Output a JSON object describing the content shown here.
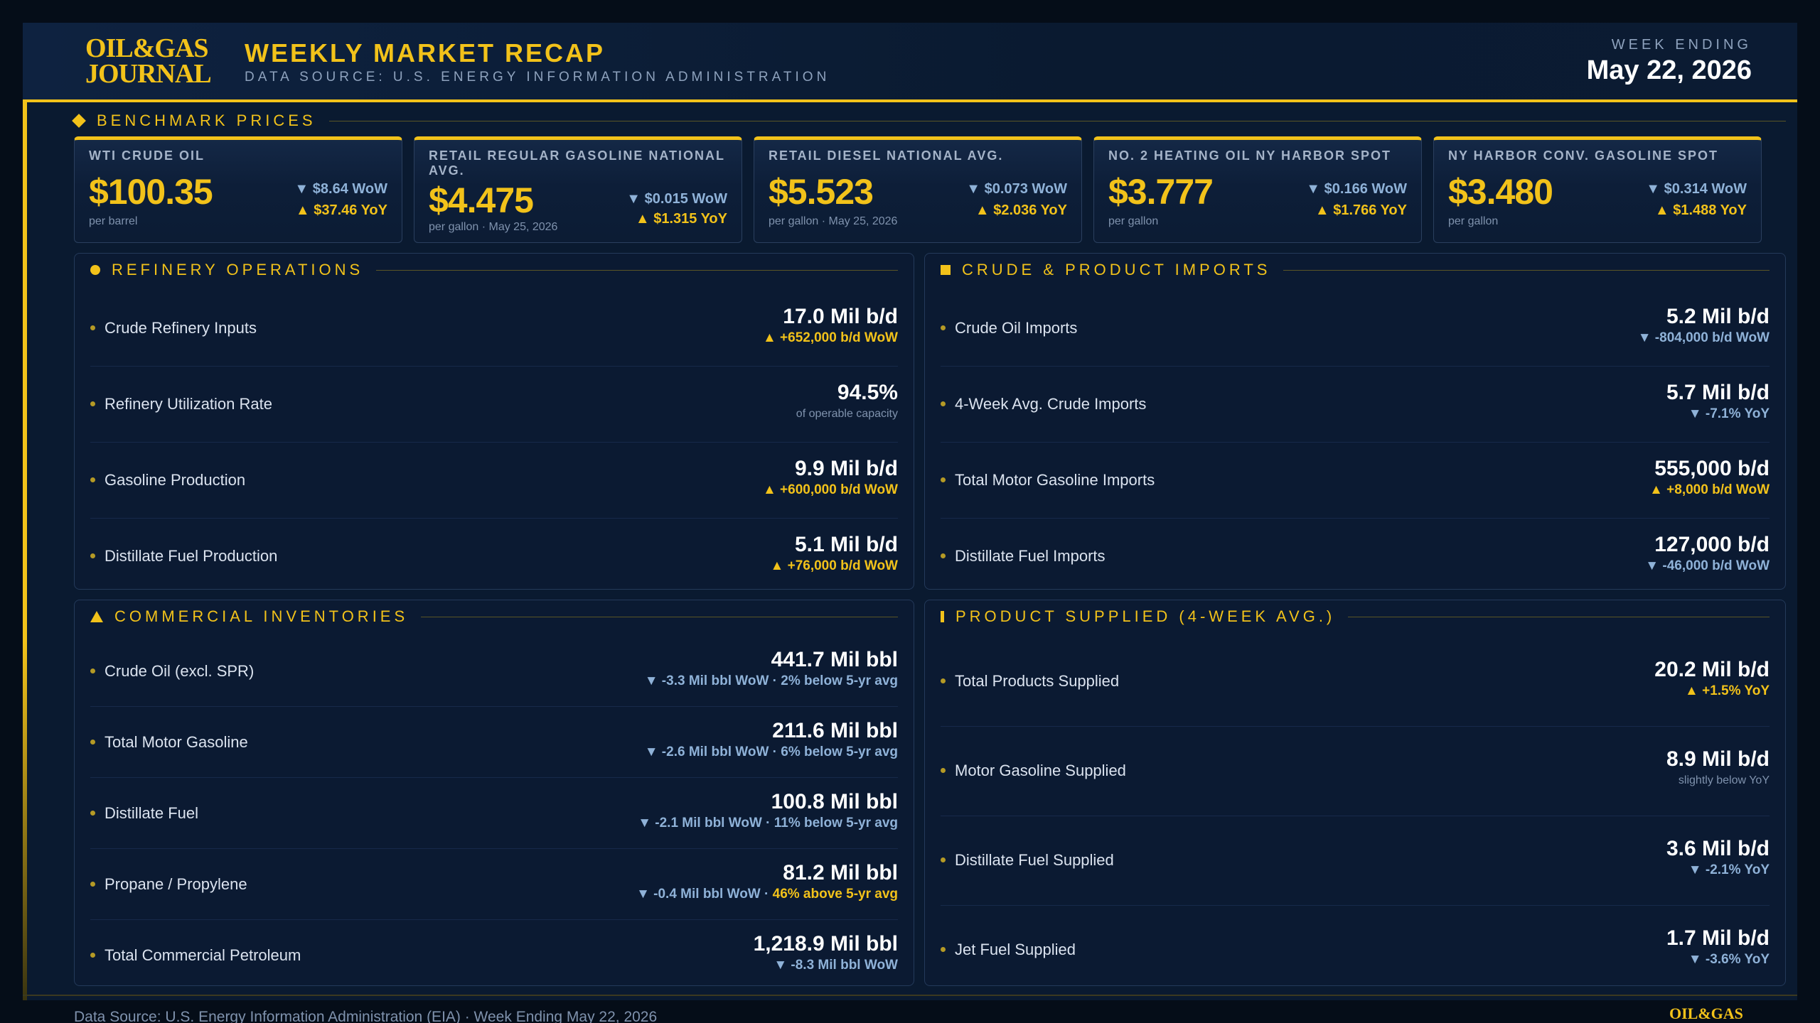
{
  "header": {
    "logo_line1": "OIL&GAS",
    "logo_line2": "JOURNAL",
    "title": "WEEKLY MARKET RECAP",
    "subtitle": "DATA SOURCE: U.S. ENERGY INFORMATION ADMINISTRATION",
    "week_label": "WEEK ENDING",
    "week_date": "May 22, 2026"
  },
  "benchmark": {
    "heading": "BENCHMARK PRICES",
    "cards": [
      {
        "label": "WTI CRUDE OIL",
        "price": "$100.35",
        "unit": "per barrel",
        "wow": "▼ $8.64 WoW",
        "yoy": "▲ $37.46 YoY"
      },
      {
        "label": "RETAIL REGULAR GASOLINE NATIONAL AVG.",
        "price": "$4.475",
        "unit": "per gallon · May 25, 2026",
        "wow": "▼ $0.015 WoW",
        "yoy": "▲ $1.315 YoY"
      },
      {
        "label": "RETAIL DIESEL NATIONAL AVG.",
        "price": "$5.523",
        "unit": "per gallon · May 25, 2026",
        "wow": "▼ $0.073 WoW",
        "yoy": "▲ $2.036 YoY"
      },
      {
        "label": "NO. 2 HEATING OIL NY HARBOR SPOT",
        "price": "$3.777",
        "unit": "per gallon",
        "wow": "▼ $0.166 WoW",
        "yoy": "▲ $1.766 YoY"
      },
      {
        "label": "NY HARBOR CONV. GASOLINE SPOT",
        "price": "$3.480",
        "unit": "per gallon",
        "wow": "▼ $0.314 WoW",
        "yoy": "▲ $1.488 YoY"
      }
    ]
  },
  "refinery": {
    "heading": "REFINERY OPERATIONS",
    "rows": [
      {
        "label": "Crude Refinery Inputs",
        "value": "17.0 Mil b/d",
        "change": "▲ +652,000 b/d WoW"
      },
      {
        "label": "Refinery Utilization Rate",
        "value": "94.5%",
        "change": "of operable capacity"
      },
      {
        "label": "Gasoline Production",
        "value": "9.9 Mil b/d",
        "change": "▲ +600,000 b/d WoW"
      },
      {
        "label": "Distillate Fuel Production",
        "value": "5.1 Mil b/d",
        "change": "▲ +76,000 b/d WoW"
      }
    ]
  },
  "imports": {
    "heading": "CRUDE & PRODUCT IMPORTS",
    "rows": [
      {
        "label": "Crude Oil Imports",
        "value": "5.2 Mil b/d",
        "change": "▼ -804,000 b/d WoW"
      },
      {
        "label": "4-Week Avg. Crude Imports",
        "value": "5.7 Mil b/d",
        "change": "▼ -7.1% YoY"
      },
      {
        "label": "Total Motor Gasoline Imports",
        "value": "555,000 b/d",
        "change": "▲ +8,000 b/d WoW"
      },
      {
        "label": "Distillate Fuel Imports",
        "value": "127,000 b/d",
        "change": "▼ -46,000 b/d WoW"
      }
    ]
  },
  "inventories": {
    "heading": "COMMERCIAL INVENTORIES",
    "rows": [
      {
        "label": "Crude Oil (excl. SPR)",
        "value": "441.7 Mil bbl",
        "change": "▼ -3.3 Mil bbl WoW · 2% below 5-yr avg"
      },
      {
        "label": "Total Motor Gasoline",
        "value": "211.6 Mil bbl",
        "change": "▼ -2.6 Mil bbl WoW · 6% below 5-yr avg"
      },
      {
        "label": "Distillate Fuel",
        "value": "100.8 Mil bbl",
        "change": "▼ -2.1 Mil bbl WoW · 11% below 5-yr avg"
      },
      {
        "label": "Propane / Propylene",
        "value": "81.2 Mil bbl",
        "change_a": "▼ -0.4 Mil bbl WoW · ",
        "change_b": "46% above 5-yr avg"
      },
      {
        "label": "Total Commercial Petroleum",
        "value": "1,218.9 Mil bbl",
        "change": "▼ -8.3 Mil bbl WoW"
      }
    ]
  },
  "supplied": {
    "heading": "PRODUCT SUPPLIED (4-WEEK AVG.)",
    "rows": [
      {
        "label": "Total Products Supplied",
        "value": "20.2 Mil b/d",
        "change": "▲ +1.5% YoY"
      },
      {
        "label": "Motor Gasoline Supplied",
        "value": "8.9 Mil b/d",
        "change": "slightly below YoY"
      },
      {
        "label": "Distillate Fuel Supplied",
        "value": "3.6 Mil b/d",
        "change": "▼ -2.1% YoY"
      },
      {
        "label": "Jet Fuel Supplied",
        "value": "1.7 Mil b/d",
        "change": "▼ -3.6% YoY"
      }
    ]
  },
  "footer": {
    "text": "Data Source: U.S. Energy Information Administration (EIA)  ·  Week Ending May 22, 2026",
    "logo": "OIL&GAS"
  },
  "colors": {
    "accent": "#f2c21a",
    "background": "#0a1a30",
    "down": "#8fb2d8"
  }
}
